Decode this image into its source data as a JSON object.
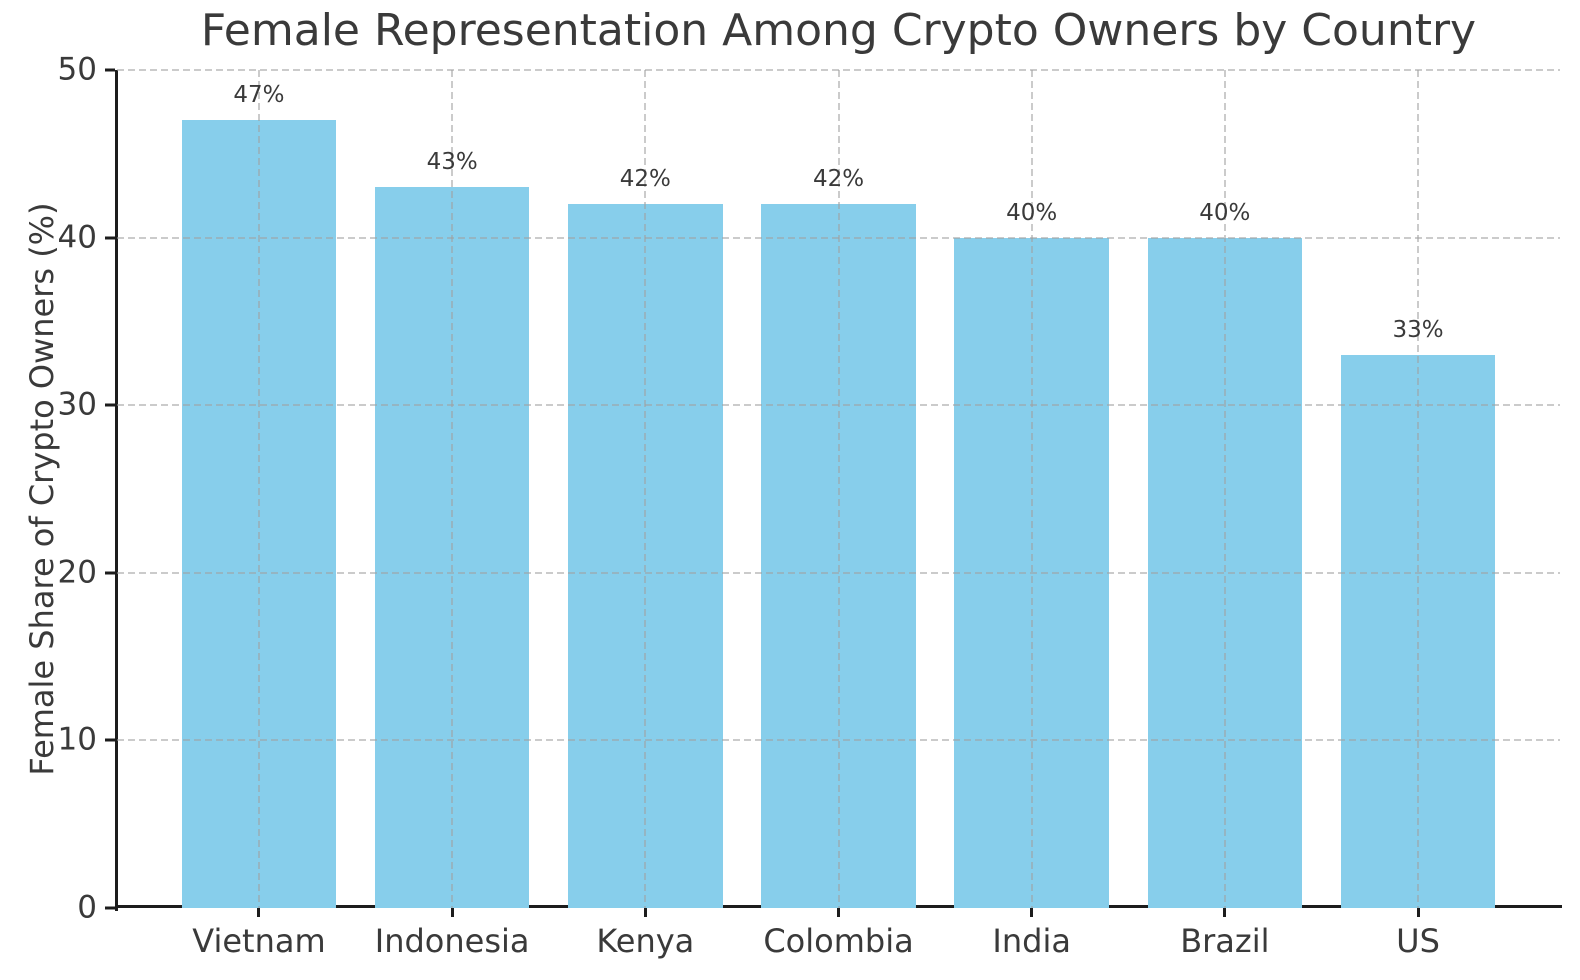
{
  "chart_data": {
    "type": "bar",
    "title": "Female Representation Among Crypto Owners by Country",
    "xlabel": "",
    "ylabel": "Female Share of Crypto Owners (%)",
    "categories": [
      "Vietnam",
      "Indonesia",
      "Kenya",
      "Colombia",
      "India",
      "Brazil",
      "US"
    ],
    "values": [
      47,
      43,
      42,
      42,
      40,
      40,
      33
    ],
    "value_labels": [
      "47%",
      "43%",
      "42%",
      "42%",
      "40%",
      "40%",
      "33%"
    ],
    "ylim": [
      0,
      50
    ],
    "yticks": [
      0,
      10,
      20,
      30,
      40,
      50
    ],
    "grid": "dashed gridlines on both axes, drawn above bars",
    "legend_position": "none",
    "bar_color": "#87CEEB",
    "text_color": "#3a3a3a",
    "spine_color": "#1c1c1c",
    "grid_color": "#a0a0a0",
    "background_color": "#ffffff"
  }
}
